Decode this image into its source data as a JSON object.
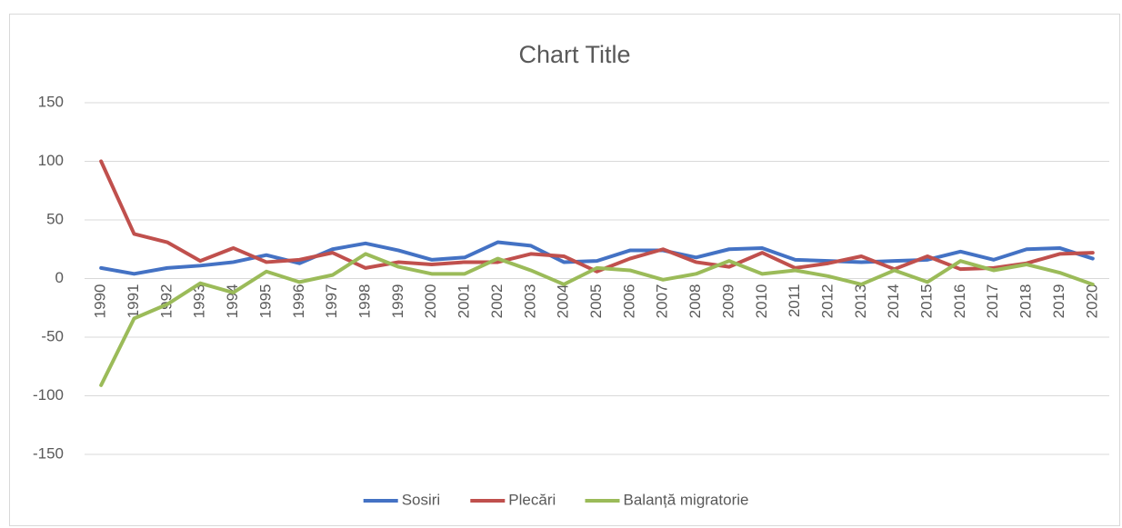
{
  "chart_data": {
    "type": "line",
    "title": "Chart Title",
    "categories": [
      "1990",
      "1991",
      "1992",
      "1993",
      "1994",
      "1995",
      "1996",
      "1997",
      "1998",
      "1999",
      "2000",
      "2001",
      "2002",
      "2003",
      "2004",
      "2005",
      "2006",
      "2007",
      "2008",
      "2009",
      "2010",
      "2011",
      "2012",
      "2013",
      "2014",
      "2015",
      "2016",
      "2017",
      "2018",
      "2019",
      "2020"
    ],
    "series": [
      {
        "name": "Sosiri",
        "color": "#4472c4",
        "values": [
          9,
          4,
          9,
          11,
          14,
          20,
          13,
          25,
          30,
          24,
          16,
          18,
          31,
          28,
          14,
          15,
          24,
          24,
          18,
          25,
          26,
          16,
          15,
          14,
          15,
          16,
          23,
          16,
          25,
          26,
          17
        ]
      },
      {
        "name": "Plecări",
        "color": "#c0504d",
        "values": [
          100,
          38,
          31,
          15,
          26,
          14,
          16,
          22,
          9,
          14,
          12,
          14,
          14,
          21,
          19,
          6,
          17,
          25,
          14,
          10,
          22,
          9,
          13,
          19,
          8,
          19,
          8,
          9,
          13,
          21,
          22
        ]
      },
      {
        "name": "Balanță migratorie",
        "color": "#9bbb59",
        "values": [
          -91,
          -34,
          -22,
          -4,
          -12,
          6,
          -3,
          3,
          21,
          10,
          4,
          4,
          17,
          7,
          -5,
          9,
          7,
          -1,
          4,
          15,
          4,
          7,
          2,
          -5,
          7,
          -3,
          15,
          7,
          12,
          5,
          -5
        ]
      }
    ],
    "ylim": [
      -150,
      150
    ],
    "yticks": [
      -150,
      -100,
      -50,
      0,
      50,
      100,
      150
    ],
    "grid": true,
    "legend": "bottom"
  }
}
